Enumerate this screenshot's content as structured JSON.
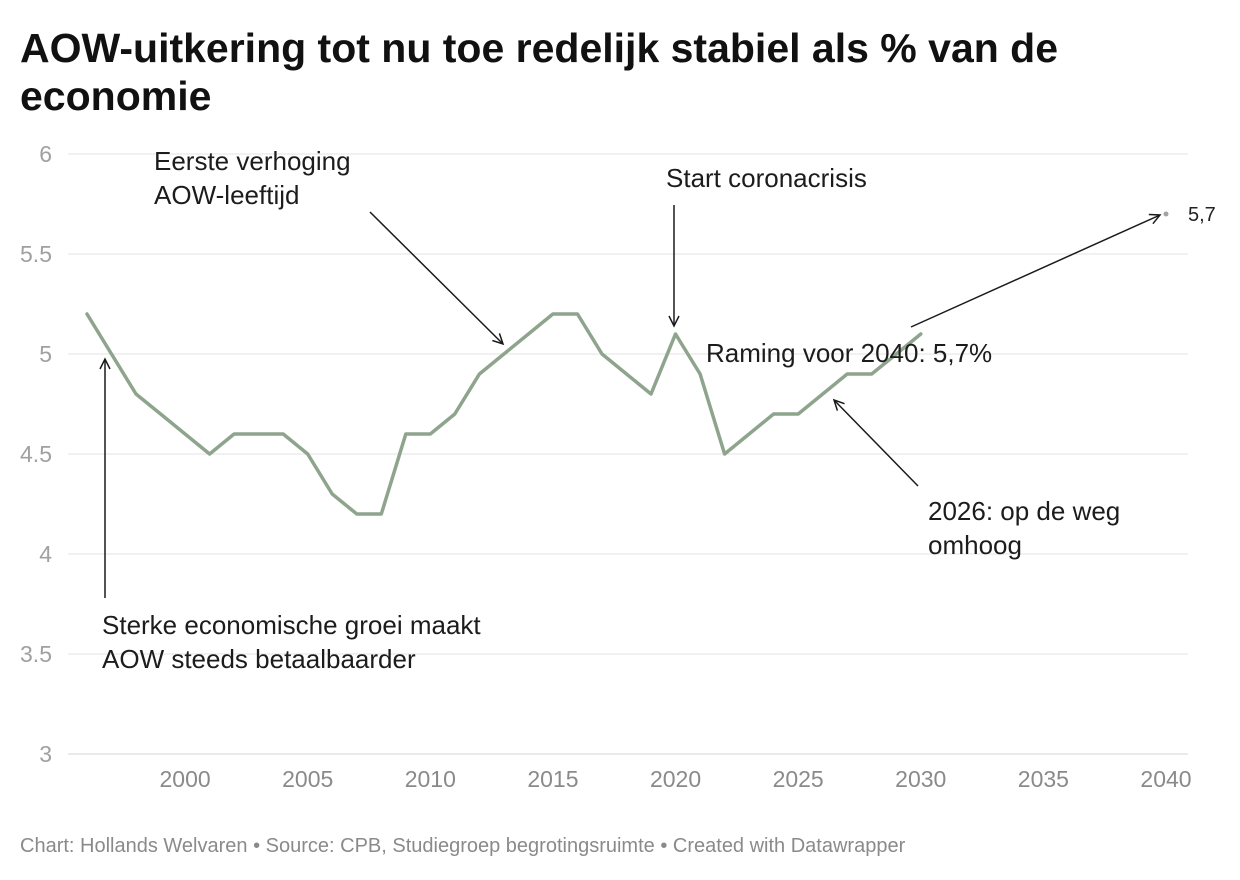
{
  "chart_data": {
    "type": "line",
    "title": "AOW-uitkering tot nu toe redelijk stabiel als % van de economie",
    "xlim": [
      1996,
      2040
    ],
    "ylim": [
      3,
      6
    ],
    "grid": true,
    "xticks": [
      2000,
      2005,
      2010,
      2015,
      2020,
      2025,
      2030,
      2035,
      2040
    ],
    "yticks": [
      3,
      3.5,
      4,
      4.5,
      5,
      5.5,
      6
    ],
    "series": [
      {
        "color": "#8ea48d",
        "x": [
          1996,
          1997,
          1998,
          1999,
          2000,
          2001,
          2002,
          2003,
          2004,
          2005,
          2006,
          2007,
          2008,
          2009,
          2010,
          2011,
          2012,
          2013,
          2014,
          2015,
          2016,
          2017,
          2018,
          2019,
          2020,
          2021,
          2022,
          2023,
          2024,
          2025,
          2026,
          2027,
          2028,
          2029,
          2030
        ],
        "y": [
          5.2,
          5.0,
          4.8,
          4.7,
          4.6,
          4.5,
          4.6,
          4.6,
          4.6,
          4.5,
          4.3,
          4.2,
          4.2,
          4.6,
          4.6,
          4.7,
          4.9,
          5.0,
          5.1,
          5.2,
          5.2,
          5.0,
          4.9,
          4.8,
          5.1,
          4.9,
          4.5,
          4.6,
          4.7,
          4.7,
          4.8,
          4.9,
          4.9,
          5.0,
          5.1
        ]
      }
    ],
    "projection": {
      "x": 2040,
      "y": 5.7,
      "label": "5,7",
      "color": "#9ea69d"
    },
    "annotations": [
      {
        "lines": [
          "Eerste verhoging",
          "AOW-leeftijd"
        ]
      },
      {
        "lines": [
          "Start coronacrisis"
        ]
      },
      {
        "lines": [
          "Raming voor 2040: 5,7%"
        ]
      },
      {
        "lines": [
          "2026: op de weg",
          "omhoog"
        ]
      },
      {
        "lines": [
          "Sterke economische groei maakt",
          "AOW steeds betaalbaarder"
        ]
      }
    ]
  },
  "footer": {
    "credit": "Chart: Hollands Welvaren",
    "separator": "•",
    "source": "Source: CPB, Studiegroep begrotingsruimte",
    "created_with": "Created with Datawrapper"
  }
}
